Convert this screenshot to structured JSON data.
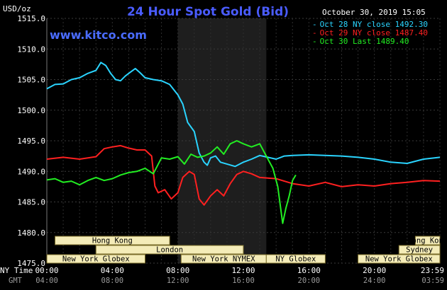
{
  "header": {
    "title": "24 Hour Spot Gold (Bid)",
    "unit": "USD/oz",
    "timestamp": "October 30, 2019 15:05",
    "website": "www.kitco.com"
  },
  "legend": [
    {
      "label": "Oct 28 NY close 1492.30",
      "color": "#2ad4ff"
    },
    {
      "label": "Oct 29 NY close 1487.40",
      "color": "#ff2020"
    },
    {
      "label": "Oct 30 Last 1489.40",
      "color": "#22ee22"
    }
  ],
  "sessions": [
    {
      "label": "Hong Kong",
      "row": 0,
      "start": 0.5,
      "end": 7.5
    },
    {
      "label": "Hong Kong",
      "row": 0,
      "start": 22.5,
      "end": 24.0
    },
    {
      "label": "London",
      "row": 1,
      "start": 3.0,
      "end": 12.0
    },
    {
      "label": "Sydney",
      "row": 1,
      "start": 21.5,
      "end": 24.0
    },
    {
      "label": "New York Globex",
      "row": 2,
      "start": 0.0,
      "end": 6.0
    },
    {
      "label": "New York NYMEX",
      "row": 2,
      "start": 8.2,
      "end": 13.4
    },
    {
      "label": "NY Globex",
      "row": 2,
      "start": 13.4,
      "end": 17.0
    },
    {
      "label": "New York Globex",
      "row": 2,
      "start": 19.0,
      "end": 24.0
    }
  ],
  "x_axis": {
    "ny_label": "NY Time",
    "gmt_label": "GMT",
    "ny_ticks": [
      "00:00",
      "04:00",
      "08:00",
      "12:00",
      "16:00",
      "20:00",
      "23:59"
    ],
    "gmt_ticks": [
      "04:00",
      "08:00",
      "12:00",
      "16:00",
      "20:00",
      "24:00",
      "03:59"
    ]
  },
  "chart_data": {
    "type": "line",
    "title": "24 Hour Spot Gold (Bid)",
    "ylabel": "USD/oz",
    "xlabel": "NY Time",
    "ylim": [
      1475.0,
      1515.0
    ],
    "yticks": [
      "1515.0",
      "1510.0",
      "1505.0",
      "1500.0",
      "1495.0",
      "1490.0",
      "1485.0",
      "1480.0",
      "1475.0"
    ],
    "xlim_hours": [
      0,
      24
    ],
    "highlight_hours": [
      8.0,
      13.4
    ],
    "grid": true,
    "series": [
      {
        "name": "Oct 28 NY close 1492.30",
        "color": "#2ad4ff",
        "x": [
          0.0,
          0.5,
          1.0,
          1.5,
          2.0,
          2.5,
          3.0,
          3.3,
          3.6,
          3.9,
          4.2,
          4.5,
          4.8,
          5.1,
          5.4,
          5.7,
          6.0,
          6.5,
          7.0,
          7.5,
          8.0,
          8.3,
          8.6,
          9.0,
          9.3,
          9.6,
          9.8,
          10.0,
          10.3,
          10.6,
          11.0,
          11.5,
          12.0,
          12.5,
          13.0,
          13.5,
          14.0,
          14.5,
          15.0,
          16.0,
          17.0,
          18.0,
          19.0,
          20.0,
          21.0,
          22.0,
          23.0,
          24.0
        ],
        "y": [
          1503.5,
          1504.2,
          1504.3,
          1505.0,
          1505.3,
          1506.0,
          1506.5,
          1507.8,
          1507.3,
          1506.0,
          1505.0,
          1504.8,
          1505.6,
          1506.2,
          1506.8,
          1506.1,
          1505.3,
          1505.0,
          1504.8,
          1504.2,
          1502.5,
          1501.0,
          1498.0,
          1496.5,
          1493.0,
          1491.5,
          1491.0,
          1492.2,
          1492.5,
          1491.5,
          1491.2,
          1490.8,
          1491.5,
          1492.0,
          1492.6,
          1492.3,
          1492.0,
          1492.5,
          1492.6,
          1492.7,
          1492.6,
          1492.5,
          1492.3,
          1492.0,
          1491.5,
          1491.3,
          1492.0,
          1492.3
        ]
      },
      {
        "name": "Oct 29 NY close 1487.40",
        "color": "#ff2020",
        "x": [
          0.0,
          1.0,
          2.0,
          3.0,
          3.5,
          4.0,
          4.5,
          5.0,
          5.5,
          6.0,
          6.4,
          6.6,
          6.8,
          7.2,
          7.6,
          8.0,
          8.3,
          8.7,
          9.0,
          9.3,
          9.6,
          10.0,
          10.4,
          10.8,
          11.2,
          11.6,
          12.0,
          12.5,
          13.0,
          14.0,
          15.0,
          16.0,
          17.0,
          18.0,
          19.0,
          20.0,
          21.0,
          22.0,
          23.0,
          24.0
        ],
        "y": [
          1492.0,
          1492.3,
          1492.0,
          1492.4,
          1493.7,
          1494.0,
          1494.2,
          1493.8,
          1493.5,
          1493.5,
          1492.5,
          1487.6,
          1486.5,
          1487.0,
          1485.5,
          1486.5,
          1489.0,
          1490.0,
          1489.5,
          1485.5,
          1484.5,
          1486.0,
          1487.0,
          1486.0,
          1488.0,
          1489.5,
          1490.0,
          1489.6,
          1489.0,
          1488.8,
          1488.0,
          1487.6,
          1488.2,
          1487.5,
          1487.8,
          1487.6,
          1488.0,
          1488.2,
          1488.5,
          1488.4
        ]
      },
      {
        "name": "Oct 30 Last 1489.40",
        "color": "#22ee22",
        "x": [
          0.0,
          0.5,
          1.0,
          1.5,
          2.0,
          2.5,
          3.0,
          3.5,
          4.0,
          4.5,
          5.0,
          5.5,
          6.0,
          6.5,
          7.0,
          7.5,
          8.0,
          8.4,
          8.8,
          9.2,
          9.6,
          10.0,
          10.4,
          10.8,
          11.2,
          11.6,
          12.0,
          12.5,
          13.0,
          13.4,
          13.8,
          14.1,
          14.4,
          14.6,
          14.8,
          15.0,
          15.2
        ],
        "y": [
          1488.6,
          1488.8,
          1488.2,
          1488.4,
          1487.8,
          1488.5,
          1489.0,
          1488.5,
          1488.8,
          1489.4,
          1489.8,
          1490.0,
          1490.5,
          1489.6,
          1492.2,
          1492.0,
          1492.4,
          1491.2,
          1492.8,
          1492.3,
          1492.5,
          1493.0,
          1494.0,
          1492.8,
          1494.5,
          1495.0,
          1494.5,
          1494.0,
          1494.5,
          1492.5,
          1490.5,
          1487.5,
          1481.5,
          1484.0,
          1486.0,
          1488.5,
          1489.4
        ]
      }
    ]
  }
}
